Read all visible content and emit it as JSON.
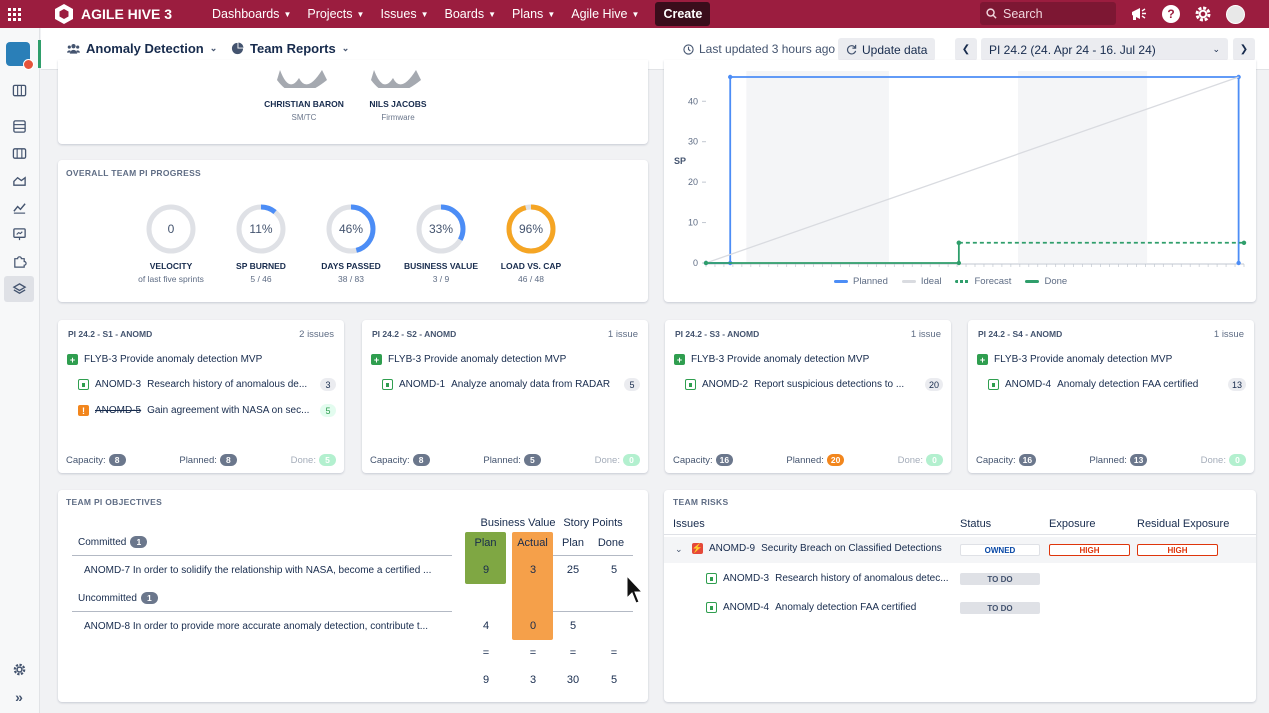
{
  "topnav": {
    "brand": "AGILE HIVE 3",
    "menu": [
      "Dashboards",
      "Projects",
      "Issues",
      "Boards",
      "Plans",
      "Agile Hive"
    ],
    "create": "Create",
    "search_placeholder": "Search"
  },
  "subheader": {
    "team": "Anomaly Detection",
    "view": "Team Reports",
    "last_updated": "Last updated 3 hours ago",
    "update_button": "Update data",
    "pi": "PI 24.2 (24. Apr 24 - 16. Jul 24)"
  },
  "members": [
    {
      "name": "CHRISTIAN BARON",
      "role": "SM/TC"
    },
    {
      "name": "NILS JACOBS",
      "role": "Firmware"
    }
  ],
  "progress": {
    "title": "OVERALL TEAM PI PROGRESS",
    "rings": [
      {
        "value": "0",
        "label": "VELOCITY",
        "sub": "of last five sprints",
        "fraction": 0,
        "color": "#4c8df6"
      },
      {
        "value": "11%",
        "label": "SP BURNED",
        "sub": "5 / 46",
        "fraction": 0.11,
        "color": "#4c8df6"
      },
      {
        "value": "46%",
        "label": "DAYS PASSED",
        "sub": "38 / 83",
        "fraction": 0.46,
        "color": "#4c8df6"
      },
      {
        "value": "33%",
        "label": "BUSINESS VALUE",
        "sub": "3 / 9",
        "fraction": 0.33,
        "color": "#4c8df6"
      },
      {
        "value": "96%",
        "label": "LOAD VS. CAP",
        "sub": "46 / 48",
        "fraction": 0.96,
        "color": "#f5a524"
      }
    ]
  },
  "chart_data": {
    "type": "line",
    "ylabel": "SP",
    "yticks": [
      0,
      10,
      20,
      30,
      40
    ],
    "ylim": [
      0,
      46
    ],
    "series": [
      {
        "name": "Planned",
        "color": "#4c8df6",
        "points": [
          [
            0,
            0
          ],
          [
            0.045,
            0
          ],
          [
            0.045,
            46
          ],
          [
            0.99,
            46
          ],
          [
            0.99,
            0
          ]
        ]
      },
      {
        "name": "Ideal",
        "color": "#d9dbe0",
        "points": [
          [
            0,
            0
          ],
          [
            0.99,
            46
          ]
        ]
      },
      {
        "name": "Forecast",
        "color": "#2f9e6b",
        "points": [
          [
            0.47,
            5
          ],
          [
            1.0,
            5
          ]
        ]
      },
      {
        "name": "Done",
        "color": "#2f9e6b",
        "points": [
          [
            0,
            0
          ],
          [
            0.47,
            0
          ],
          [
            0.47,
            5
          ]
        ]
      }
    ],
    "legend": [
      "Planned",
      "Ideal",
      "Forecast",
      "Done"
    ]
  },
  "sprints": [
    {
      "title": "PI 24.2 - S1 - ANOMD",
      "count": "2 issues",
      "epic": "FLYB-3  Provide anomaly detection MVP",
      "issues": [
        {
          "key": "ANOMD-3",
          "summary": "Research history of anomalous de...",
          "pts": "3",
          "type": "story",
          "strike": false
        },
        {
          "key": "ANOMD-5",
          "summary": "Gain agreement with NASA on sec...",
          "pts": "5",
          "type": "warn",
          "strike": true
        }
      ],
      "capacity": "8",
      "planned": "8",
      "done": "5"
    },
    {
      "title": "PI 24.2 - S2 - ANOMD",
      "count": "1 issue",
      "epic": "FLYB-3  Provide anomaly detection MVP",
      "issues": [
        {
          "key": "ANOMD-1",
          "summary": "Analyze anomaly data from RADAR",
          "pts": "5",
          "type": "story",
          "strike": false
        }
      ],
      "capacity": "8",
      "planned": "5",
      "done": "0"
    },
    {
      "title": "PI 24.2 - S3 - ANOMD",
      "count": "1 issue",
      "epic": "FLYB-3  Provide anomaly detection MVP",
      "issues": [
        {
          "key": "ANOMD-2",
          "summary": "Report suspicious detections to ...",
          "pts": "20",
          "type": "story",
          "strike": false
        }
      ],
      "capacity": "16",
      "planned": "20",
      "done": "0"
    },
    {
      "title": "PI 24.2 - S4 - ANOMD",
      "count": "1 issue",
      "epic": "FLYB-3  Provide anomaly detection MVP",
      "issues": [
        {
          "key": "ANOMD-4",
          "summary": "Anomaly detection FAA certified",
          "pts": "13",
          "type": "story",
          "strike": false
        }
      ],
      "capacity": "16",
      "planned": "13",
      "done": "0"
    }
  ],
  "footer_labels": {
    "capacity": "Capacity:",
    "planned": "Planned:",
    "done": "Done:"
  },
  "objectives": {
    "title": "TEAM PI OBJECTIVES",
    "business_value": "Business Value",
    "story_points": "Story Points",
    "plan": "Plan",
    "actual": "Actual",
    "done": "Done",
    "committed_label": "Committed",
    "committed_count": "1",
    "uncommitted_label": "Uncommitted",
    "uncommitted_count": "1",
    "rows": [
      {
        "text": "ANOMD-7  In order to solidify the relationship with NASA, become a certified ...",
        "bv_plan": "9",
        "bv_actual": "3",
        "sp_plan": "25",
        "sp_done": "5"
      },
      {
        "text": "ANOMD-8  In order to provide more accurate anomaly detection, contribute t...",
        "bv_plan": "4",
        "bv_actual": "0",
        "sp_plan": "5",
        "sp_done": ""
      }
    ],
    "equals": "=",
    "totals": {
      "bv_plan": "9",
      "bv_actual": "3",
      "sp_plan": "30",
      "sp_done": "5"
    }
  },
  "risks": {
    "title": "TEAM RISKS",
    "headers": {
      "issues": "Issues",
      "status": "Status",
      "exposure": "Exposure",
      "residual": "Residual Exposure"
    },
    "main": {
      "key": "ANOMD-9",
      "summary": "Security Breach on Classified Detections",
      "status": "OWNED",
      "exposure": "HIGH",
      "residual": "HIGH"
    },
    "children": [
      {
        "key": "ANOMD-3",
        "summary": "Research history of anomalous detec...",
        "status": "TO DO"
      },
      {
        "key": "ANOMD-4",
        "summary": "Anomaly detection FAA certified",
        "status": "TO DO"
      }
    ]
  }
}
